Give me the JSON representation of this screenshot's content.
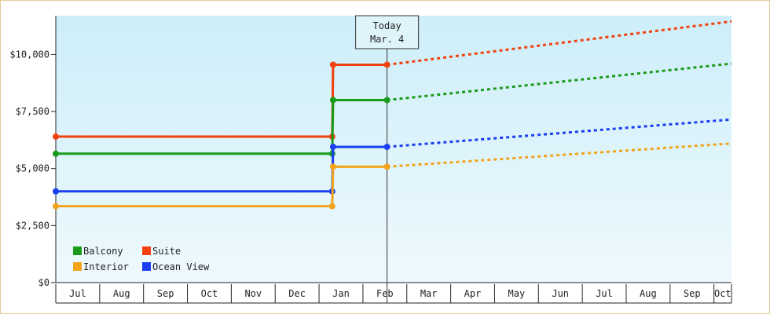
{
  "chart_data": {
    "type": "line",
    "x_tick_labels": [
      "Jul",
      "Aug",
      "Sep",
      "Oct",
      "Nov",
      "Dec",
      "Jan",
      "Feb",
      "Mar",
      "Apr",
      "May",
      "Jun",
      "Jul",
      "Aug",
      "Sep",
      "Oct"
    ],
    "y_tick_labels": [
      "$0",
      "$2,500",
      "$5,000",
      "$7,500",
      "$10,000"
    ],
    "y_ticks": [
      0,
      2500,
      5000,
      7500,
      10000
    ],
    "ylim": [
      0,
      11700
    ],
    "xlim": [
      0,
      15.4
    ],
    "background": {
      "top": "#cdeef9",
      "bottom": "#eef9fd"
    },
    "today": {
      "label_line1": "Today",
      "label_line2": "Mar. 4",
      "x": 7.55
    },
    "legend": {
      "placement": "bottom-left",
      "items": [
        {
          "label": "Balcony",
          "color": "#1a9a1a"
        },
        {
          "label": "Suite",
          "color": "#f2400f"
        },
        {
          "label": "Interior",
          "color": "#f2a31a"
        },
        {
          "label": "Ocean View",
          "color": "#1a3ff2"
        }
      ]
    },
    "series": [
      {
        "name": "Suite",
        "color": "#f2400f",
        "actual": [
          [
            0,
            6400
          ],
          [
            6.3,
            6400
          ],
          [
            6.32,
            9550
          ],
          [
            7.55,
            9550
          ]
        ],
        "markers": [
          [
            0,
            6400
          ],
          [
            6.3,
            6400
          ],
          [
            6.32,
            9550
          ],
          [
            7.55,
            9550
          ]
        ],
        "forecast": [
          [
            7.55,
            9550
          ],
          [
            15.4,
            11450
          ]
        ]
      },
      {
        "name": "Balcony",
        "color": "#1a9a1a",
        "actual": [
          [
            0,
            5650
          ],
          [
            6.3,
            5650
          ],
          [
            6.32,
            8000
          ],
          [
            7.55,
            8000
          ]
        ],
        "markers": [
          [
            0,
            5650
          ],
          [
            6.3,
            5650
          ],
          [
            6.32,
            8000
          ],
          [
            7.55,
            8000
          ]
        ],
        "forecast": [
          [
            7.55,
            8000
          ],
          [
            15.4,
            9600
          ]
        ]
      },
      {
        "name": "Ocean View",
        "color": "#1a3ff2",
        "actual": [
          [
            0,
            4000
          ],
          [
            6.3,
            4000
          ],
          [
            6.32,
            5950
          ],
          [
            7.55,
            5950
          ]
        ],
        "markers": [
          [
            0,
            4000
          ],
          [
            6.3,
            4000
          ],
          [
            6.32,
            5950
          ],
          [
            7.55,
            5950
          ]
        ],
        "forecast": [
          [
            7.55,
            5950
          ],
          [
            15.4,
            7150
          ]
        ]
      },
      {
        "name": "Interior",
        "color": "#f2a31a",
        "actual": [
          [
            0,
            3350
          ],
          [
            6.3,
            3350
          ],
          [
            6.32,
            5080
          ],
          [
            7.55,
            5080
          ]
        ],
        "markers": [
          [
            0,
            3350
          ],
          [
            6.3,
            3350
          ],
          [
            6.32,
            5080
          ],
          [
            7.55,
            5080
          ]
        ],
        "forecast": [
          [
            7.55,
            5080
          ],
          [
            15.4,
            6100
          ]
        ]
      }
    ]
  }
}
